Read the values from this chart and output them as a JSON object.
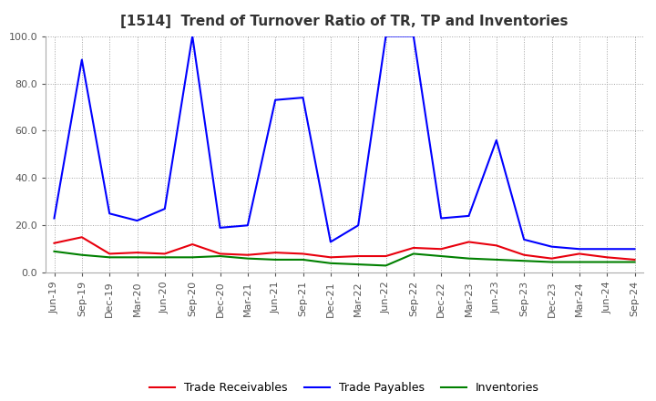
{
  "title": "[1514]  Trend of Turnover Ratio of TR, TP and Inventories",
  "x_labels": [
    "Jun-19",
    "Sep-19",
    "Dec-19",
    "Mar-20",
    "Jun-20",
    "Sep-20",
    "Dec-20",
    "Mar-21",
    "Jun-21",
    "Sep-21",
    "Dec-21",
    "Mar-22",
    "Jun-22",
    "Sep-22",
    "Dec-22",
    "Mar-23",
    "Jun-23",
    "Sep-23",
    "Dec-23",
    "Mar-24",
    "Jun-24",
    "Sep-24"
  ],
  "ylim": [
    0.0,
    100.0
  ],
  "yticks": [
    0.0,
    20.0,
    40.0,
    60.0,
    80.0,
    100.0
  ],
  "trade_receivables": [
    12.5,
    15.0,
    8.0,
    8.5,
    8.0,
    12.0,
    8.0,
    7.5,
    8.5,
    8.0,
    6.5,
    7.0,
    7.0,
    10.5,
    10.0,
    13.0,
    11.5,
    7.5,
    6.0,
    8.0,
    6.5,
    5.5
  ],
  "trade_payables": [
    23.0,
    90.0,
    25.0,
    22.0,
    27.0,
    100.0,
    19.0,
    20.0,
    73.0,
    74.0,
    13.0,
    20.0,
    100.0,
    100.0,
    23.0,
    24.0,
    56.0,
    14.0,
    11.0,
    10.0,
    10.0,
    10.0
  ],
  "inventories": [
    9.0,
    7.5,
    6.5,
    6.5,
    6.5,
    6.5,
    7.0,
    6.0,
    5.5,
    5.5,
    4.0,
    3.5,
    3.0,
    8.0,
    7.0,
    6.0,
    5.5,
    5.0,
    4.5,
    4.5,
    4.5,
    4.5
  ],
  "tr_color": "#e8000d",
  "tp_color": "#0000ff",
  "inv_color": "#008000",
  "tr_label": "Trade Receivables",
  "tp_label": "Trade Payables",
  "inv_label": "Inventories",
  "bg_color": "#ffffff",
  "plot_bg_color": "#ffffff",
  "grid_color": "#999999",
  "title_fontsize": 11,
  "legend_fontsize": 9,
  "tick_fontsize": 8,
  "linewidth": 1.5
}
